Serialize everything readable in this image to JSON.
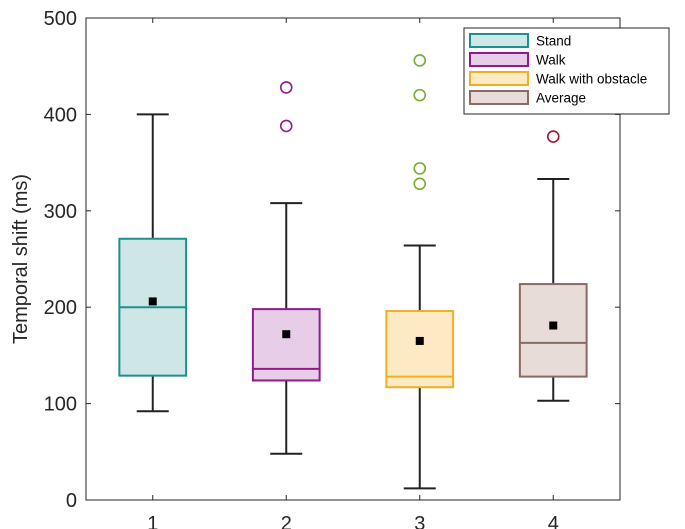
{
  "chart_data": {
    "type": "box",
    "title": "",
    "xlabel": "",
    "ylabel": "Temporal shift (ms)",
    "ylim": [
      0,
      500
    ],
    "yticks": [
      0,
      100,
      200,
      300,
      400,
      500
    ],
    "categories": [
      "1",
      "2",
      "3",
      "4"
    ],
    "grid": false,
    "legend": "top-right",
    "series": [
      {
        "name": "Stand",
        "color": "#1a9090",
        "fill": "#cfe6e6",
        "whisker_low": 92,
        "q1": 129,
        "median": 200,
        "q3": 271,
        "whisker_high": 400,
        "mean": 206,
        "outliers": []
      },
      {
        "name": "Walk",
        "color": "#8e1a8e",
        "fill": "#e8cde8",
        "whisker_low": 48,
        "q1": 124,
        "median": 136,
        "q3": 198,
        "whisker_high": 308,
        "mean": 172,
        "outliers": [
          388,
          428
        ]
      },
      {
        "name": "Walk with obstacle",
        "color": "#edb120",
        "fill": "#fde9c4",
        "whisker_low": 12,
        "q1": 117,
        "median": 128,
        "q3": 196,
        "whisker_high": 264,
        "mean": 165,
        "outliers": [
          328,
          344,
          420,
          456
        ],
        "outlier_color": "#77ac30"
      },
      {
        "name": "Average",
        "color": "#8a6a62",
        "fill": "#e8dcd8",
        "whisker_low": 103,
        "q1": 128,
        "median": 163,
        "q3": 224,
        "whisker_high": 333,
        "mean": 181,
        "outliers": [
          377
        ],
        "outlier_color": "#a2142f"
      }
    ]
  }
}
